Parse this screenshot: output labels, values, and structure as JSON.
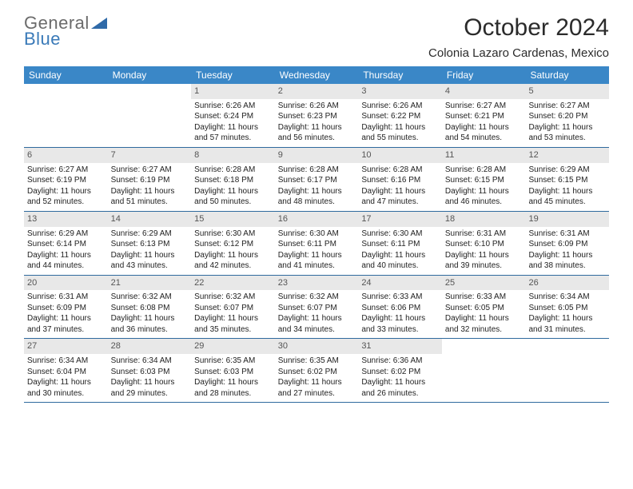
{
  "brand": {
    "line1": "General",
    "line2": "Blue"
  },
  "title": "October 2024",
  "location": "Colonia Lazaro Cardenas, Mexico",
  "colors": {
    "header_bg": "#3a87c7",
    "header_text": "#ffffff",
    "daynum_bg": "#e8e8e8",
    "daynum_text": "#555555",
    "rule": "#2f6a9e",
    "logo_gray": "#6b6b6b",
    "logo_blue": "#3a7ab8"
  },
  "weekdays": [
    "Sunday",
    "Monday",
    "Tuesday",
    "Wednesday",
    "Thursday",
    "Friday",
    "Saturday"
  ],
  "weeks": [
    [
      {
        "n": "",
        "sr": "",
        "ss": "",
        "dl": ""
      },
      {
        "n": "",
        "sr": "",
        "ss": "",
        "dl": ""
      },
      {
        "n": "1",
        "sr": "Sunrise: 6:26 AM",
        "ss": "Sunset: 6:24 PM",
        "dl": "Daylight: 11 hours and 57 minutes."
      },
      {
        "n": "2",
        "sr": "Sunrise: 6:26 AM",
        "ss": "Sunset: 6:23 PM",
        "dl": "Daylight: 11 hours and 56 minutes."
      },
      {
        "n": "3",
        "sr": "Sunrise: 6:26 AM",
        "ss": "Sunset: 6:22 PM",
        "dl": "Daylight: 11 hours and 55 minutes."
      },
      {
        "n": "4",
        "sr": "Sunrise: 6:27 AM",
        "ss": "Sunset: 6:21 PM",
        "dl": "Daylight: 11 hours and 54 minutes."
      },
      {
        "n": "5",
        "sr": "Sunrise: 6:27 AM",
        "ss": "Sunset: 6:20 PM",
        "dl": "Daylight: 11 hours and 53 minutes."
      }
    ],
    [
      {
        "n": "6",
        "sr": "Sunrise: 6:27 AM",
        "ss": "Sunset: 6:19 PM",
        "dl": "Daylight: 11 hours and 52 minutes."
      },
      {
        "n": "7",
        "sr": "Sunrise: 6:27 AM",
        "ss": "Sunset: 6:19 PM",
        "dl": "Daylight: 11 hours and 51 minutes."
      },
      {
        "n": "8",
        "sr": "Sunrise: 6:28 AM",
        "ss": "Sunset: 6:18 PM",
        "dl": "Daylight: 11 hours and 50 minutes."
      },
      {
        "n": "9",
        "sr": "Sunrise: 6:28 AM",
        "ss": "Sunset: 6:17 PM",
        "dl": "Daylight: 11 hours and 48 minutes."
      },
      {
        "n": "10",
        "sr": "Sunrise: 6:28 AM",
        "ss": "Sunset: 6:16 PM",
        "dl": "Daylight: 11 hours and 47 minutes."
      },
      {
        "n": "11",
        "sr": "Sunrise: 6:28 AM",
        "ss": "Sunset: 6:15 PM",
        "dl": "Daylight: 11 hours and 46 minutes."
      },
      {
        "n": "12",
        "sr": "Sunrise: 6:29 AM",
        "ss": "Sunset: 6:15 PM",
        "dl": "Daylight: 11 hours and 45 minutes."
      }
    ],
    [
      {
        "n": "13",
        "sr": "Sunrise: 6:29 AM",
        "ss": "Sunset: 6:14 PM",
        "dl": "Daylight: 11 hours and 44 minutes."
      },
      {
        "n": "14",
        "sr": "Sunrise: 6:29 AM",
        "ss": "Sunset: 6:13 PM",
        "dl": "Daylight: 11 hours and 43 minutes."
      },
      {
        "n": "15",
        "sr": "Sunrise: 6:30 AM",
        "ss": "Sunset: 6:12 PM",
        "dl": "Daylight: 11 hours and 42 minutes."
      },
      {
        "n": "16",
        "sr": "Sunrise: 6:30 AM",
        "ss": "Sunset: 6:11 PM",
        "dl": "Daylight: 11 hours and 41 minutes."
      },
      {
        "n": "17",
        "sr": "Sunrise: 6:30 AM",
        "ss": "Sunset: 6:11 PM",
        "dl": "Daylight: 11 hours and 40 minutes."
      },
      {
        "n": "18",
        "sr": "Sunrise: 6:31 AM",
        "ss": "Sunset: 6:10 PM",
        "dl": "Daylight: 11 hours and 39 minutes."
      },
      {
        "n": "19",
        "sr": "Sunrise: 6:31 AM",
        "ss": "Sunset: 6:09 PM",
        "dl": "Daylight: 11 hours and 38 minutes."
      }
    ],
    [
      {
        "n": "20",
        "sr": "Sunrise: 6:31 AM",
        "ss": "Sunset: 6:09 PM",
        "dl": "Daylight: 11 hours and 37 minutes."
      },
      {
        "n": "21",
        "sr": "Sunrise: 6:32 AM",
        "ss": "Sunset: 6:08 PM",
        "dl": "Daylight: 11 hours and 36 minutes."
      },
      {
        "n": "22",
        "sr": "Sunrise: 6:32 AM",
        "ss": "Sunset: 6:07 PM",
        "dl": "Daylight: 11 hours and 35 minutes."
      },
      {
        "n": "23",
        "sr": "Sunrise: 6:32 AM",
        "ss": "Sunset: 6:07 PM",
        "dl": "Daylight: 11 hours and 34 minutes."
      },
      {
        "n": "24",
        "sr": "Sunrise: 6:33 AM",
        "ss": "Sunset: 6:06 PM",
        "dl": "Daylight: 11 hours and 33 minutes."
      },
      {
        "n": "25",
        "sr": "Sunrise: 6:33 AM",
        "ss": "Sunset: 6:05 PM",
        "dl": "Daylight: 11 hours and 32 minutes."
      },
      {
        "n": "26",
        "sr": "Sunrise: 6:34 AM",
        "ss": "Sunset: 6:05 PM",
        "dl": "Daylight: 11 hours and 31 minutes."
      }
    ],
    [
      {
        "n": "27",
        "sr": "Sunrise: 6:34 AM",
        "ss": "Sunset: 6:04 PM",
        "dl": "Daylight: 11 hours and 30 minutes."
      },
      {
        "n": "28",
        "sr": "Sunrise: 6:34 AM",
        "ss": "Sunset: 6:03 PM",
        "dl": "Daylight: 11 hours and 29 minutes."
      },
      {
        "n": "29",
        "sr": "Sunrise: 6:35 AM",
        "ss": "Sunset: 6:03 PM",
        "dl": "Daylight: 11 hours and 28 minutes."
      },
      {
        "n": "30",
        "sr": "Sunrise: 6:35 AM",
        "ss": "Sunset: 6:02 PM",
        "dl": "Daylight: 11 hours and 27 minutes."
      },
      {
        "n": "31",
        "sr": "Sunrise: 6:36 AM",
        "ss": "Sunset: 6:02 PM",
        "dl": "Daylight: 11 hours and 26 minutes."
      },
      {
        "n": "",
        "sr": "",
        "ss": "",
        "dl": ""
      },
      {
        "n": "",
        "sr": "",
        "ss": "",
        "dl": ""
      }
    ]
  ]
}
